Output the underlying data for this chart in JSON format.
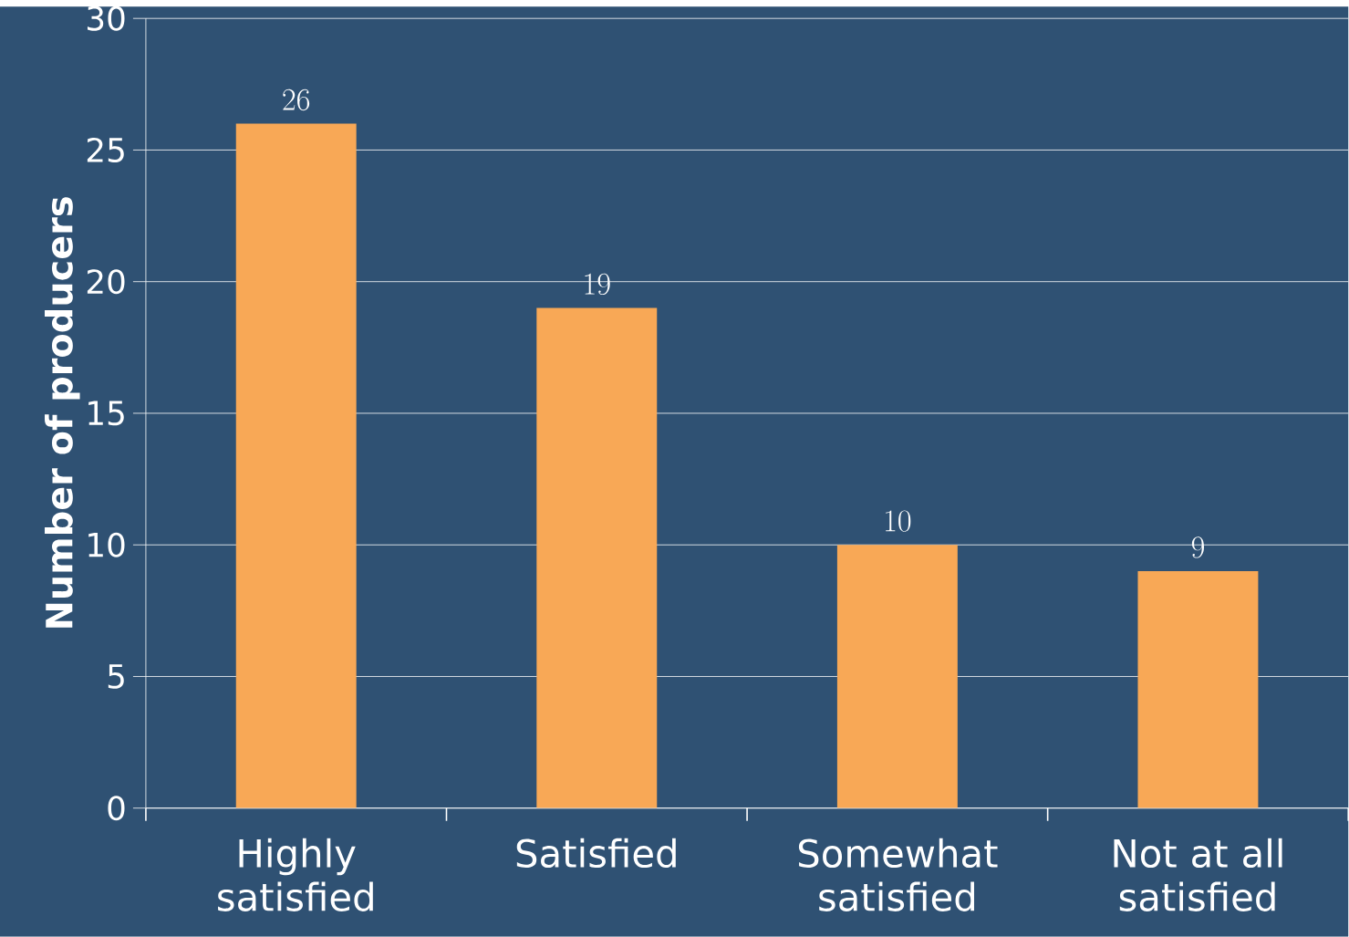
{
  "chart_data": {
    "type": "bar",
    "ylabel": "Number of producers",
    "categories": [
      "Highly satisfied",
      "Satisfied",
      "Somewhat satisfied",
      "Not at all satisfied"
    ],
    "values": [
      26,
      19,
      10,
      9
    ],
    "color": "#f8a856",
    "ylim": [
      0,
      30
    ],
    "yticks": [
      0,
      5,
      10,
      15,
      20,
      25,
      30
    ],
    "grid": "y",
    "data_labels": true
  }
}
